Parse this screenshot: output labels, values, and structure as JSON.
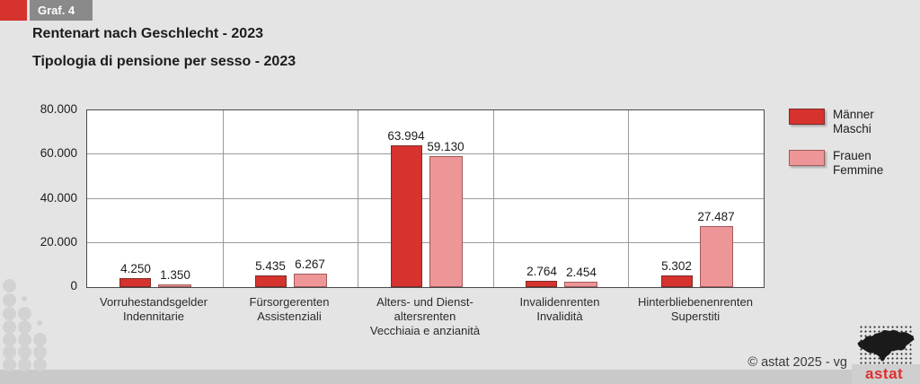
{
  "header": {
    "tag": "Graf. 4",
    "title_de": "Rentenart nach Geschlecht - 2023",
    "title_it": "Tipologia di pensione per sesso - 2023"
  },
  "chart_data": {
    "type": "bar",
    "title": "Rentenart nach Geschlecht - 2023",
    "subtitle": "Tipologia di pensione per sesso - 2023",
    "categories": [
      {
        "lines": [
          "Vorruhestandsgelder",
          "Indennitarie"
        ]
      },
      {
        "lines": [
          "Fürsorgerenten",
          "Assistenziali"
        ]
      },
      {
        "lines": [
          "Alters- und Dienst-",
          "altersrenten",
          "Vecchiaia e anzianità"
        ]
      },
      {
        "lines": [
          "Invalidenrenten",
          "Invalidità"
        ]
      },
      {
        "lines": [
          "Hinterbliebenenrenten",
          "Superstiti"
        ]
      }
    ],
    "series": [
      {
        "name": "Männer / Maschi",
        "legend_lines": [
          "Männer",
          "Maschi"
        ],
        "values": [
          4250,
          5435,
          63994,
          2764,
          5302
        ],
        "value_labels": [
          "4.250",
          "5.435",
          "63.994",
          "2.764",
          "5.302"
        ],
        "fill": "#d6332e",
        "border": "#7e2b27"
      },
      {
        "name": "Frauen / Femmine",
        "legend_lines": [
          "Frauen",
          "Femmine"
        ],
        "values": [
          1350,
          6267,
          59130,
          2454,
          27487
        ],
        "value_labels": [
          "1.350",
          "6.267",
          "59.130",
          "2.454",
          "27.487"
        ],
        "fill": "#ee9598",
        "border": "#a05a5a"
      }
    ],
    "ylim": [
      0,
      80000
    ],
    "yticks": {
      "values": [
        0,
        20000,
        40000,
        60000,
        80000
      ],
      "labels": [
        "0",
        "20.000",
        "40.000",
        "60.000",
        "80.000"
      ]
    },
    "grid": true,
    "legend_position": "right"
  },
  "footer": {
    "copyright": "© astat 2025 - vg",
    "logo_text": "astat"
  },
  "colors": {
    "accent_red": "#d6332e",
    "bar_pink": "#ee9598",
    "tag_gray": "#8a8a8a",
    "page_bg": "#e4e4e4",
    "band_gray": "#c9c9c9",
    "logo_red": "#e02e2e"
  }
}
